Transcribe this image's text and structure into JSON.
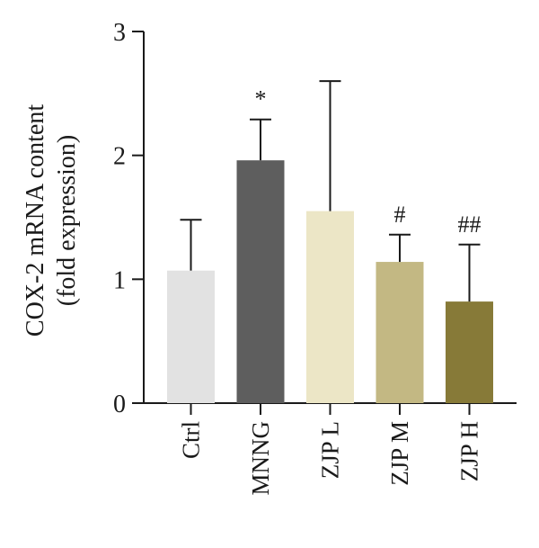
{
  "chart_data": {
    "type": "bar",
    "title": "",
    "ylabel_line1": "COX-2 mRNA content",
    "ylabel_line2": "(fold expression)",
    "xlabel": "",
    "ylim": [
      0,
      3
    ],
    "yticks": [
      "0",
      "1",
      "2",
      "3"
    ],
    "categories": [
      "Ctrl",
      "MNNG",
      "ZJP L",
      "ZJP M",
      "ZJP H"
    ],
    "values": [
      1.07,
      1.96,
      1.55,
      1.14,
      0.82
    ],
    "error_upper": [
      1.48,
      2.29,
      2.6,
      1.36,
      1.28
    ],
    "annotations": [
      "",
      "*",
      "",
      "#",
      "##"
    ],
    "colors": [
      "#e2e2e2",
      "#5e5e5e",
      "#ece6c6",
      "#c3b883",
      "#877a38"
    ],
    "grid": false,
    "legend": false
  }
}
